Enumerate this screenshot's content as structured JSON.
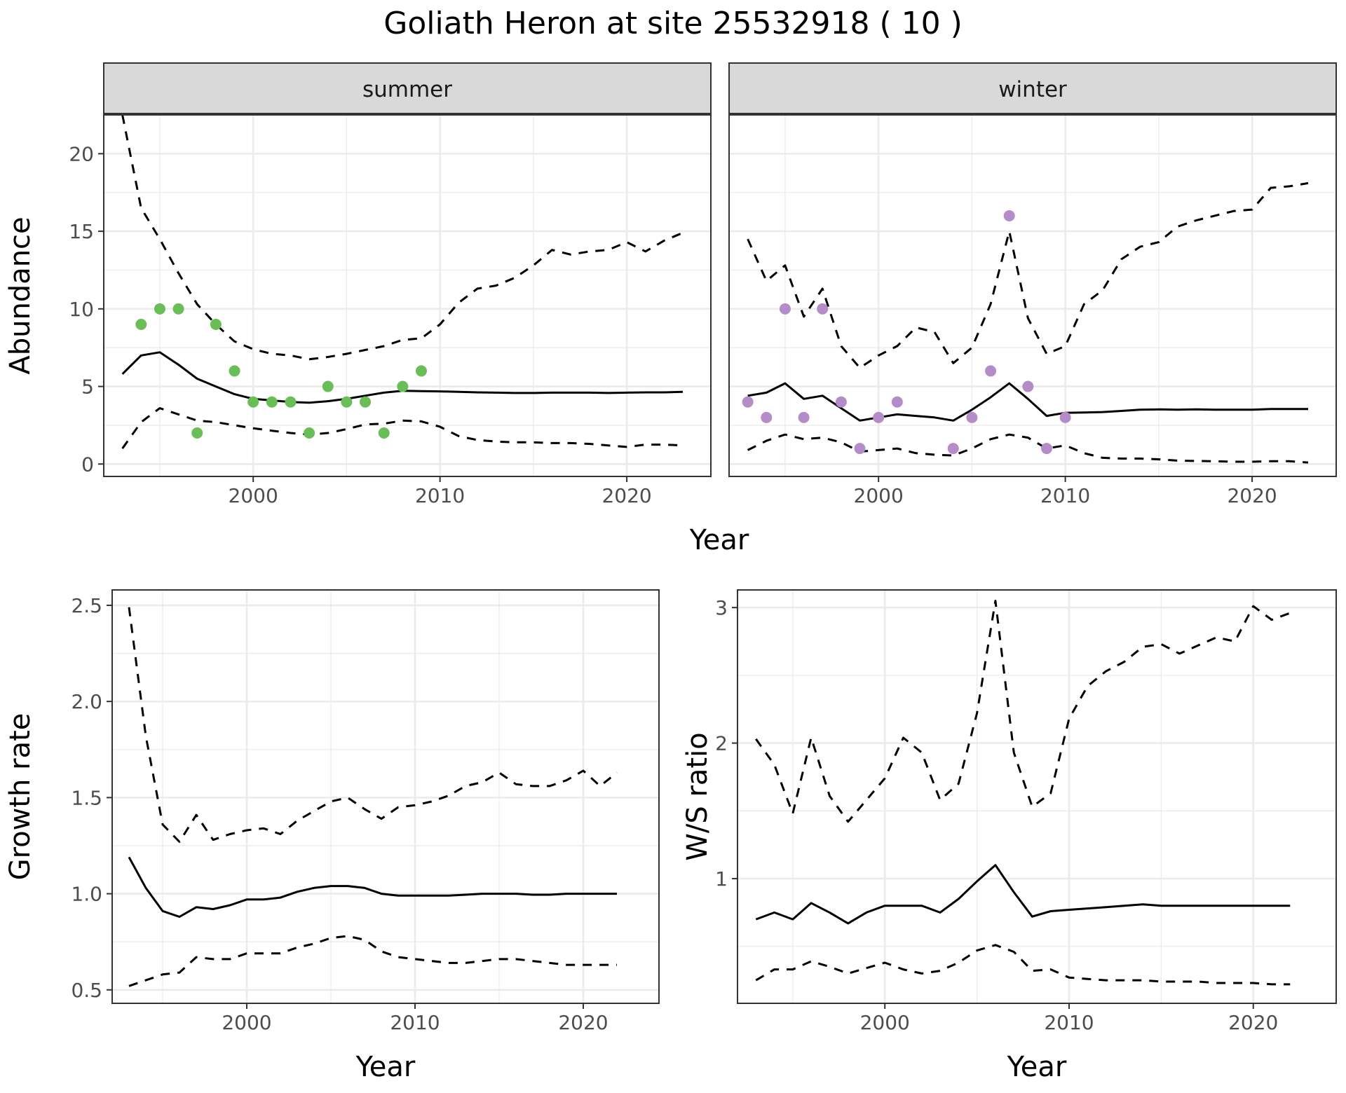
{
  "title": "Goliath Heron at site 25532918 ( 10 )",
  "chart_data": [
    {
      "id": "abundance",
      "type": "line",
      "facets": [
        "summer",
        "winter"
      ],
      "xlabel": "Year",
      "ylabel": "Abundance",
      "xlim": [
        1992,
        2024.5
      ],
      "ylim": [
        -0.8,
        22.5
      ],
      "xticks": [
        2000,
        2010,
        2020
      ],
      "yticks": [
        0,
        5,
        10,
        15,
        20
      ],
      "x": [
        1993,
        1994,
        1995,
        1996,
        1997,
        1998,
        1999,
        2000,
        2001,
        2002,
        2003,
        2004,
        2005,
        2006,
        2007,
        2008,
        2009,
        2010,
        2011,
        2012,
        2013,
        2014,
        2015,
        2016,
        2017,
        2018,
        2019,
        2020,
        2021,
        2022,
        2023
      ],
      "panels": [
        {
          "facet": "summer",
          "point_color": "#6ABE58",
          "series": [
            {
              "role": "mean",
              "values": [
                5.8,
                7.0,
                7.2,
                6.4,
                5.5,
                5.0,
                4.5,
                4.2,
                4.1,
                4.0,
                3.95,
                4.05,
                4.2,
                4.4,
                4.6,
                4.72,
                4.7,
                4.68,
                4.65,
                4.62,
                4.6,
                4.58,
                4.58,
                4.6,
                4.6,
                4.6,
                4.58,
                4.6,
                4.62,
                4.62,
                4.65
              ]
            },
            {
              "role": "upper",
              "values": [
                22.5,
                16.5,
                14.5,
                12.3,
                10.3,
                9.0,
                7.9,
                7.4,
                7.1,
                7.0,
                6.75,
                6.9,
                7.1,
                7.35,
                7.6,
                8.0,
                8.1,
                9.0,
                10.4,
                11.3,
                11.5,
                12.0,
                12.8,
                13.8,
                13.5,
                13.7,
                13.8,
                14.3,
                13.7,
                14.4,
                14.9
              ]
            },
            {
              "role": "lower",
              "values": [
                1.0,
                2.7,
                3.6,
                3.2,
                2.8,
                2.7,
                2.5,
                2.3,
                2.15,
                2.0,
                1.9,
                2.0,
                2.25,
                2.55,
                2.6,
                2.8,
                2.75,
                2.4,
                1.8,
                1.55,
                1.45,
                1.4,
                1.4,
                1.35,
                1.35,
                1.3,
                1.2,
                1.1,
                1.25,
                1.25,
                1.2
              ]
            }
          ],
          "points": [
            {
              "x": 1994,
              "y": 9
            },
            {
              "x": 1995,
              "y": 10
            },
            {
              "x": 1996,
              "y": 10
            },
            {
              "x": 1997,
              "y": 2
            },
            {
              "x": 1998,
              "y": 9
            },
            {
              "x": 1999,
              "y": 6
            },
            {
              "x": 2000,
              "y": 4
            },
            {
              "x": 2001,
              "y": 4
            },
            {
              "x": 2002,
              "y": 4
            },
            {
              "x": 2003,
              "y": 2
            },
            {
              "x": 2004,
              "y": 5
            },
            {
              "x": 2005,
              "y": 4
            },
            {
              "x": 2006,
              "y": 4
            },
            {
              "x": 2007,
              "y": 2
            },
            {
              "x": 2008,
              "y": 5
            },
            {
              "x": 2009,
              "y": 6
            }
          ]
        },
        {
          "facet": "winter",
          "point_color": "#B48CC8",
          "series": [
            {
              "role": "mean",
              "values": [
                4.4,
                4.6,
                5.2,
                4.2,
                4.4,
                3.6,
                2.8,
                3.0,
                3.2,
                3.1,
                3.0,
                2.8,
                3.5,
                4.3,
                5.2,
                4.2,
                3.1,
                3.3,
                3.32,
                3.35,
                3.42,
                3.5,
                3.52,
                3.5,
                3.52,
                3.5,
                3.5,
                3.5,
                3.55,
                3.55,
                3.55
              ]
            },
            {
              "role": "upper",
              "values": [
                14.5,
                11.8,
                12.8,
                9.5,
                11.3,
                7.6,
                6.2,
                7.0,
                7.6,
                8.8,
                8.5,
                6.5,
                7.5,
                10.3,
                15.0,
                9.4,
                7.1,
                7.6,
                10.3,
                11.2,
                13.2,
                14.0,
                14.3,
                15.3,
                15.7,
                16.0,
                16.3,
                16.4,
                17.8,
                17.9,
                18.1
              ]
            },
            {
              "role": "lower",
              "values": [
                0.9,
                1.5,
                1.9,
                1.6,
                1.7,
                1.4,
                0.8,
                0.9,
                1.0,
                0.7,
                0.6,
                0.55,
                1.0,
                1.6,
                1.9,
                1.7,
                1.0,
                1.2,
                0.7,
                0.4,
                0.35,
                0.35,
                0.3,
                0.22,
                0.2,
                0.18,
                0.15,
                0.15,
                0.18,
                0.18,
                0.1
              ]
            }
          ],
          "points": [
            {
              "x": 1993,
              "y": 4
            },
            {
              "x": 1994,
              "y": 3
            },
            {
              "x": 1995,
              "y": 10
            },
            {
              "x": 1996,
              "y": 3
            },
            {
              "x": 1997,
              "y": 10
            },
            {
              "x": 1998,
              "y": 4
            },
            {
              "x": 1999,
              "y": 1
            },
            {
              "x": 2000,
              "y": 3
            },
            {
              "x": 2001,
              "y": 4
            },
            {
              "x": 2004,
              "y": 1
            },
            {
              "x": 2005,
              "y": 3
            },
            {
              "x": 2006,
              "y": 6
            },
            {
              "x": 2007,
              "y": 16
            },
            {
              "x": 2008,
              "y": 5
            },
            {
              "x": 2009,
              "y": 1
            },
            {
              "x": 2010,
              "y": 3
            }
          ]
        }
      ]
    },
    {
      "id": "growth-rate",
      "type": "line",
      "xlabel": "Year",
      "ylabel": "Growth rate",
      "xlim": [
        1992,
        2024.5
      ],
      "ylim": [
        0.43,
        2.58
      ],
      "xticks": [
        2000,
        2010,
        2020
      ],
      "yticks": [
        0.5,
        1.0,
        1.5,
        2.0,
        2.5
      ],
      "ytick_labels": [
        "0.5",
        "1.0",
        "1.5",
        "2.0",
        "2.5"
      ],
      "x": [
        1993,
        1994,
        1995,
        1996,
        1997,
        1998,
        1999,
        2000,
        2001,
        2002,
        2003,
        2004,
        2005,
        2006,
        2007,
        2008,
        2009,
        2010,
        2011,
        2012,
        2013,
        2014,
        2015,
        2016,
        2017,
        2018,
        2019,
        2020,
        2021,
        2022
      ],
      "series": [
        {
          "role": "mean",
          "values": [
            1.19,
            1.03,
            0.91,
            0.88,
            0.93,
            0.92,
            0.94,
            0.97,
            0.97,
            0.98,
            1.01,
            1.03,
            1.04,
            1.04,
            1.03,
            1.0,
            0.99,
            0.99,
            0.99,
            0.99,
            0.995,
            1.0,
            1.0,
            1.0,
            0.995,
            0.995,
            1.0,
            1.0,
            1.0,
            1.0
          ]
        },
        {
          "role": "upper",
          "values": [
            2.49,
            1.82,
            1.36,
            1.27,
            1.41,
            1.28,
            1.31,
            1.33,
            1.34,
            1.31,
            1.38,
            1.43,
            1.48,
            1.5,
            1.44,
            1.39,
            1.45,
            1.46,
            1.48,
            1.51,
            1.56,
            1.58,
            1.63,
            1.57,
            1.56,
            1.56,
            1.59,
            1.64,
            1.56,
            1.63
          ]
        },
        {
          "role": "lower",
          "values": [
            0.52,
            0.55,
            0.58,
            0.59,
            0.67,
            0.66,
            0.66,
            0.69,
            0.69,
            0.69,
            0.72,
            0.74,
            0.77,
            0.78,
            0.76,
            0.7,
            0.67,
            0.66,
            0.65,
            0.64,
            0.64,
            0.65,
            0.66,
            0.66,
            0.65,
            0.64,
            0.63,
            0.63,
            0.63,
            0.63
          ]
        }
      ]
    },
    {
      "id": "ws-ratio",
      "type": "line",
      "xlabel": "Year",
      "ylabel": "W/S ratio",
      "xlim": [
        1992,
        2024.5
      ],
      "ylim": [
        0.08,
        3.13
      ],
      "xticks": [
        2000,
        2010,
        2020
      ],
      "yticks": [
        1,
        2,
        3
      ],
      "x": [
        1993,
        1994,
        1995,
        1996,
        1997,
        1998,
        1999,
        2000,
        2001,
        2002,
        2003,
        2004,
        2005,
        2006,
        2007,
        2008,
        2009,
        2010,
        2011,
        2012,
        2013,
        2014,
        2015,
        2016,
        2017,
        2018,
        2019,
        2020,
        2021,
        2022
      ],
      "series": [
        {
          "role": "mean",
          "values": [
            0.7,
            0.75,
            0.7,
            0.82,
            0.75,
            0.67,
            0.75,
            0.8,
            0.8,
            0.8,
            0.75,
            0.85,
            0.98,
            1.1,
            0.9,
            0.72,
            0.76,
            0.77,
            0.78,
            0.79,
            0.8,
            0.81,
            0.8,
            0.8,
            0.8,
            0.8,
            0.8,
            0.8,
            0.8,
            0.8
          ]
        },
        {
          "role": "upper",
          "values": [
            2.03,
            1.84,
            1.48,
            2.04,
            1.61,
            1.42,
            1.58,
            1.74,
            2.04,
            1.93,
            1.58,
            1.7,
            2.22,
            3.05,
            1.93,
            1.53,
            1.63,
            2.18,
            2.42,
            2.53,
            2.6,
            2.71,
            2.73,
            2.66,
            2.72,
            2.78,
            2.75,
            3.01,
            2.91,
            2.96
          ]
        },
        {
          "role": "lower",
          "values": [
            0.25,
            0.33,
            0.33,
            0.39,
            0.35,
            0.3,
            0.34,
            0.38,
            0.33,
            0.3,
            0.32,
            0.38,
            0.47,
            0.51,
            0.46,
            0.32,
            0.33,
            0.27,
            0.26,
            0.25,
            0.25,
            0.25,
            0.24,
            0.24,
            0.24,
            0.23,
            0.23,
            0.23,
            0.22,
            0.22
          ]
        }
      ]
    }
  ]
}
